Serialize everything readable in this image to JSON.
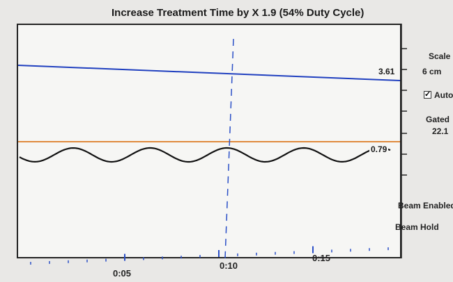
{
  "title": "Increase Treatment Time by X 1.9 (54% Duty Cycle)",
  "panel": {
    "scale_label": "Scale",
    "scale_value": "6 cm",
    "auto_label": "Auto",
    "auto_checked": true,
    "gated_label": "Gated",
    "gated_value": "22.1",
    "beam_enabled_label": "Beam Enabled",
    "beam_hold_label": "Beam Hold"
  },
  "chart_data": {
    "type": "line",
    "threshold_upper": {
      "value": "3.61",
      "color": "#1f3fbf"
    },
    "threshold_lower": {
      "value": "0.79",
      "color": "#e08a3c"
    },
    "signal_color": "#111111",
    "cursor": {
      "time": "0:10",
      "color": "#2a4fc7"
    },
    "time_labels": [
      "0:05",
      "0:10",
      "0:15"
    ]
  }
}
